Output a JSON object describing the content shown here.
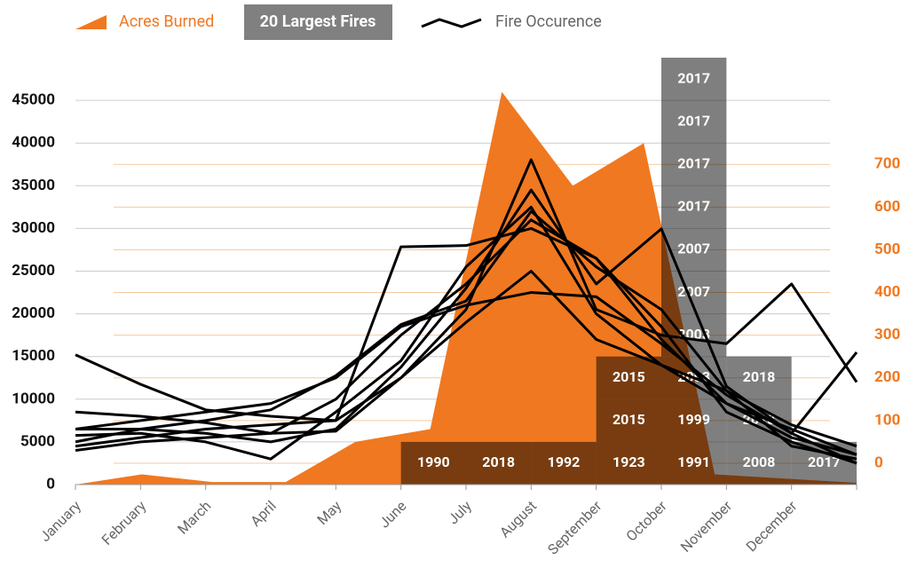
{
  "chart_data": {
    "type": "combo",
    "categories": [
      "January",
      "February",
      "March",
      "April",
      "May",
      "June",
      "July",
      "August",
      "September",
      "October",
      "November",
      "December",
      null
    ],
    "legend": [
      "Acres Burned",
      "20 Largest Fires",
      "Fire Occurence"
    ],
    "ylim": [
      0,
      50000
    ],
    "yticks": [
      0,
      5000,
      10000,
      15000,
      20000,
      25000,
      30000,
      35000,
      40000,
      45000
    ],
    "y2lim": [
      -50,
      950
    ],
    "y2ticks": [
      0,
      100,
      200,
      300,
      400,
      500,
      600,
      700
    ],
    "area": {
      "name": "Acres Burned",
      "color": "#f07820",
      "x": [
        0,
        1.02,
        2.1,
        3.23,
        4.3,
        5.45,
        6.55,
        7.64,
        8.73,
        9.82,
        12
      ],
      "values": [
        0,
        1200,
        300,
        300,
        5000,
        6500,
        46000,
        35000,
        40000,
        1200,
        200
      ]
    },
    "largest_fires": [
      [],
      [],
      [],
      [],
      [],
      [
        "1990"
      ],
      [
        "2018"
      ],
      [
        "1992"
      ],
      [
        "1923",
        "2015",
        "2015"
      ],
      [
        "1991",
        "1999",
        "2003",
        "2003",
        "2007",
        "2007",
        "2017",
        "2017",
        "2017",
        "2017"
      ],
      [
        "2008",
        "2018",
        "2018"
      ],
      [
        "2017"
      ]
    ],
    "series": [
      {
        "axis": "y2",
        "color": "#000",
        "values": [
          254,
          185,
          125,
          110,
          100,
          200,
          330,
          450,
          290,
          230,
          140,
          60,
          20
        ]
      },
      {
        "axis": "y2",
        "color": "#000",
        "values": [
          120,
          110,
          95,
          70,
          75,
          200,
          360,
          711,
          360,
          300,
          280,
          420,
          190
        ]
      },
      {
        "axis": "y2",
        "color": "#000",
        "values": [
          80,
          100,
          120,
          140,
          200,
          320,
          370,
          400,
          390,
          280,
          160,
          70,
          0
        ]
      },
      {
        "axis": "y2",
        "color": "#000",
        "values": [
          40,
          60,
          80,
          90,
          100,
          507,
          510,
          550,
          480,
          290,
          140,
          80,
          20
        ]
      },
      {
        "axis": "y2",
        "color": "#000",
        "values": [
          65,
          70,
          50,
          10,
          120,
          240,
          460,
          600,
          350,
          230,
          170,
          90,
          40
        ]
      },
      {
        "axis": "y2",
        "color": "#000",
        "values": [
          30,
          50,
          60,
          70,
          150,
          300,
          420,
          570,
          480,
          320,
          120,
          50,
          0
        ]
      },
      {
        "axis": "y2",
        "color": "#000",
        "values": [
          80,
          80,
          100,
          125,
          205,
          325,
          380,
          590,
          460,
          360,
          170,
          40,
          10
        ]
      },
      {
        "axis": "y2",
        "color": "#000",
        "values": [
          50,
          80,
          70,
          50,
          80,
          225,
          410,
          640,
          420,
          549,
          180,
          70,
          260
        ]
      }
    ]
  }
}
